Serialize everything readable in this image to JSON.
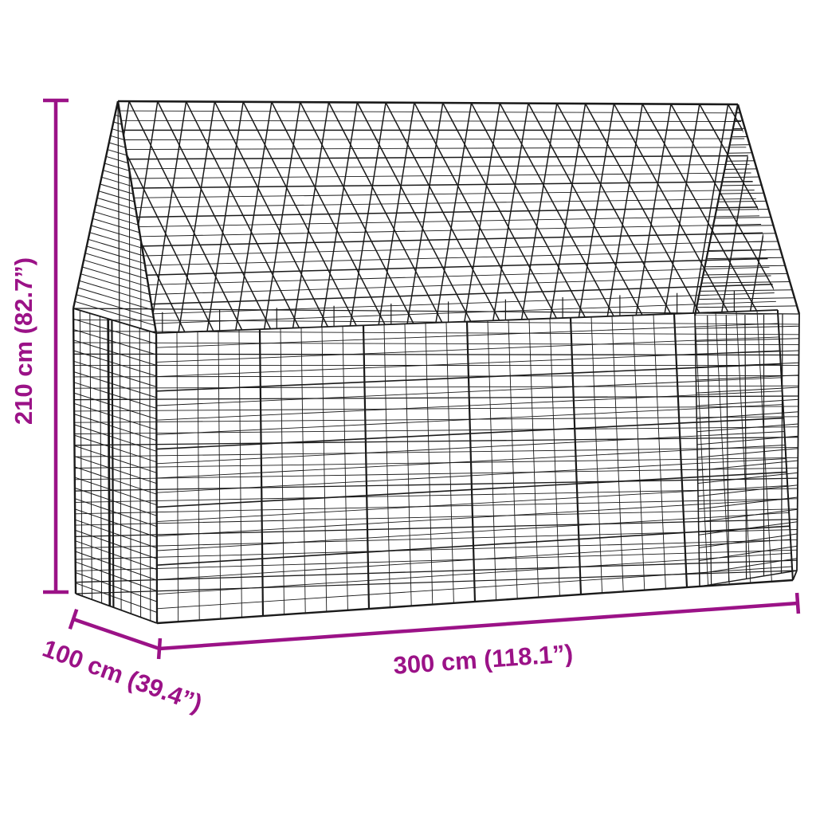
{
  "colors": {
    "accent": "#9B1287",
    "wire": "#1a1a1a",
    "background": "#ffffff"
  },
  "dimensions": {
    "height": {
      "label": "210 cm (82.7”)"
    },
    "depth": {
      "label": "100 cm (39.4”)"
    },
    "width": {
      "label": "300 cm (118.1”)"
    }
  }
}
